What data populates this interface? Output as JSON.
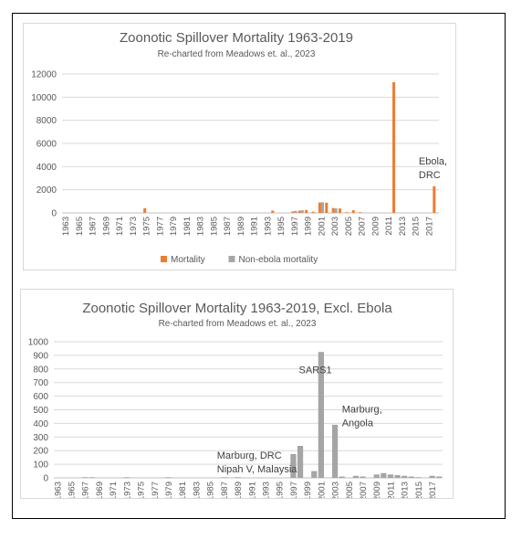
{
  "chart_data": [
    {
      "type": "bar",
      "title": "Zoonotic Spillover Mortality 1963-2019",
      "subtitle": "Re-charted from Meadows et. al., 2023",
      "ylim": [
        0,
        12000
      ],
      "yticks": [
        0,
        2000,
        4000,
        6000,
        8000,
        10000,
        12000
      ],
      "xtick_labels": [
        "1963",
        "1965",
        "1967",
        "1969",
        "1971",
        "1973",
        "1975",
        "1977",
        "1979",
        "1981",
        "1983",
        "1985",
        "1987",
        "1989",
        "1991",
        "1993",
        "1995",
        "1997",
        "1999",
        "2001",
        "2003",
        "2005",
        "2007",
        "2009",
        "2011",
        "2013",
        "2015",
        "2017"
      ],
      "x_start": 1963,
      "x_end": 2018,
      "grid": true,
      "legend_position": "bottom",
      "series": [
        {
          "name": "Mortality",
          "color": "#ED7D31",
          "points": [
            [
              1975,
              400
            ],
            [
              1994,
              200
            ],
            [
              1997,
              120
            ],
            [
              1998,
              200
            ],
            [
              1999,
              250
            ],
            [
              2000,
              100
            ],
            [
              2001,
              900
            ],
            [
              2002,
              880
            ],
            [
              2003,
              420
            ],
            [
              2004,
              380
            ],
            [
              2005,
              60
            ],
            [
              2006,
              230
            ],
            [
              2007,
              60
            ],
            [
              2012,
              11300
            ],
            [
              2018,
              2300
            ]
          ]
        },
        {
          "name": "Non-ebola mortality",
          "color": "#A5A5A5",
          "points": [
            [
              1997,
              180
            ],
            [
              1998,
              230
            ],
            [
              2001,
              920
            ],
            [
              2003,
              390
            ]
          ]
        }
      ],
      "annotations": [
        {
          "text": "Ebola,\nDRC",
          "x": 2016,
          "y": 4200
        }
      ]
    },
    {
      "type": "bar",
      "title": "Zoonotic Spillover Mortality 1963-2019, Excl. Ebola",
      "subtitle": "Re-charted from Meadows et. al., 2023",
      "ylim": [
        0,
        1000
      ],
      "yticks": [
        0,
        100,
        200,
        300,
        400,
        500,
        600,
        700,
        800,
        900,
        1000
      ],
      "xtick_labels": [
        "1963",
        "1965",
        "1967",
        "1969",
        "1971",
        "1973",
        "1975",
        "1977",
        "1979",
        "1981",
        "1983",
        "1985",
        "1987",
        "1989",
        "1991",
        "1993",
        "1995",
        "1997",
        "1999",
        "2001",
        "2003",
        "2005",
        "2007",
        "2009",
        "2011",
        "2013",
        "2015",
        "2017"
      ],
      "x_start": 1963,
      "x_end": 2018,
      "grid": true,
      "series": [
        {
          "name": "",
          "color": "#A5A5A5",
          "points": [
            [
              1967,
              5
            ],
            [
              1968,
              5
            ],
            [
              1973,
              5
            ],
            [
              1979,
              5
            ],
            [
              1987,
              5
            ],
            [
              1989,
              5
            ],
            [
              1997,
              175
            ],
            [
              1998,
              235
            ],
            [
              2000,
              50
            ],
            [
              2001,
              925
            ],
            [
              2003,
              390
            ],
            [
              2004,
              10
            ],
            [
              2006,
              15
            ],
            [
              2007,
              10
            ],
            [
              2009,
              25
            ],
            [
              2010,
              35
            ],
            [
              2011,
              25
            ],
            [
              2012,
              20
            ],
            [
              2013,
              15
            ],
            [
              2014,
              10
            ],
            [
              2015,
              5
            ],
            [
              2017,
              15
            ],
            [
              2018,
              10
            ]
          ]
        }
      ],
      "annotations": [
        {
          "text": "SARS1",
          "x": 1998.3,
          "y": 770
        },
        {
          "text": "Marburg,\nAngola",
          "x": 2004.5,
          "y": 480
        },
        {
          "text": "Marburg, DRC\nNipah V, Malaysia",
          "x": 1986.5,
          "y": 140
        }
      ]
    }
  ]
}
